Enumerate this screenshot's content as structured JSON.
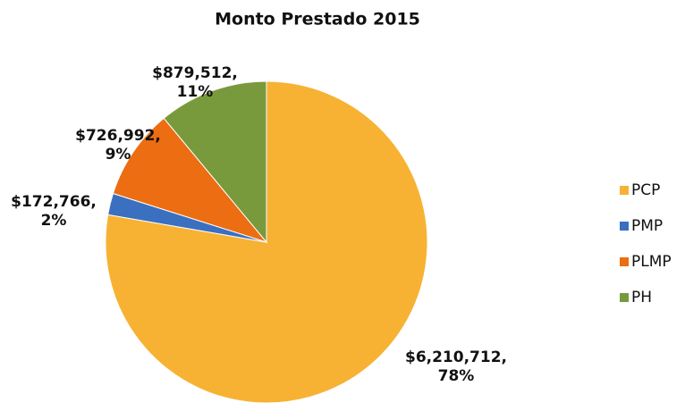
{
  "chart_data": {
    "type": "pie",
    "title": "Monto Prestado 2015",
    "categories": [
      "PCP",
      "PMP",
      "PLMP",
      "PH"
    ],
    "values": [
      6210712,
      172766,
      726992,
      879512
    ],
    "value_labels": [
      "$6,210,712,",
      "$172,766,",
      "$726,992,",
      "$879,512,"
    ],
    "percent_labels": [
      "78%",
      "2%",
      "9%",
      "11%"
    ],
    "colors": [
      "#f7b233",
      "#3b6fc0",
      "#ec6d12",
      "#789a3c"
    ],
    "legend": "right"
  }
}
